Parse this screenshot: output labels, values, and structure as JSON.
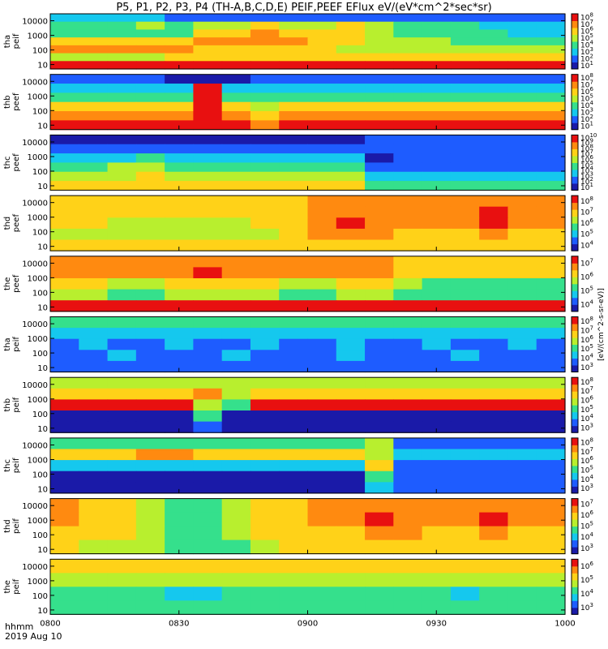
{
  "title": "P5, P1, P2, P3, P4 (TH-A,B,C,D,E) PEIF,PEEF EFlux eV/(eV*cm^2*sec*sr)",
  "time_label": "hhmm",
  "date_label": "2019 Aug 10",
  "colorbar_units": "[eV/(cm^2-s-sr-eV)]",
  "chart_data": [
    {
      "type": "heatmap",
      "ylabel": [
        "tha",
        "peif"
      ],
      "x": [
        "0800",
        "0830",
        "0900",
        "0930",
        "1000"
      ],
      "yticks": [
        "10",
        "100",
        "1000",
        "10000"
      ],
      "ylim": [
        5,
        30000
      ],
      "cbar": [
        "10^1",
        "10^2",
        "10^3",
        "10^4",
        "10^5",
        "10^6",
        "10^7",
        "10^8"
      ],
      "rows": [
        [
          2,
          2,
          2,
          2,
          1,
          1,
          1,
          1,
          1,
          1,
          1,
          1,
          1,
          1,
          1,
          1,
          1,
          1
        ],
        [
          3,
          3,
          3,
          4,
          3,
          4,
          4,
          5,
          4,
          4,
          5,
          4,
          3,
          3,
          3,
          2,
          2,
          2
        ],
        [
          3,
          3,
          3,
          3,
          3,
          5,
          5,
          6,
          5,
          5,
          5,
          4,
          3,
          3,
          3,
          3,
          2,
          2
        ],
        [
          5,
          5,
          5,
          5,
          5,
          6,
          6,
          6,
          6,
          5,
          5,
          4,
          4,
          4,
          3,
          3,
          3,
          3
        ],
        [
          6,
          6,
          6,
          6,
          6,
          5,
          5,
          5,
          5,
          5,
          4,
          4,
          4,
          4,
          4,
          4,
          4,
          4
        ],
        [
          4,
          4,
          4,
          4,
          5,
          5,
          5,
          5,
          5,
          5,
          5,
          5,
          5,
          5,
          5,
          5,
          5,
          5
        ],
        [
          7,
          7,
          7,
          7,
          7,
          7,
          7,
          7,
          7,
          7,
          7,
          7,
          7,
          7,
          7,
          7,
          7,
          7
        ]
      ]
    },
    {
      "type": "heatmap",
      "ylabel": [
        "thb",
        "peef"
      ],
      "x": [
        "0800",
        "0830",
        "0900",
        "0930",
        "1000"
      ],
      "yticks": [
        "10",
        "100",
        "1000",
        "10000"
      ],
      "ylim": [
        5,
        30000
      ],
      "cbar": [
        "10^1",
        "10^2",
        "10^3",
        "10^4",
        "10^5",
        "10^6",
        "10^7",
        "10^8"
      ],
      "rows": [
        [
          1,
          1,
          1,
          1,
          0,
          0,
          0,
          1,
          1,
          1,
          1,
          1,
          1,
          1,
          1,
          1,
          1,
          1
        ],
        [
          2,
          2,
          2,
          2,
          2,
          7,
          2,
          2,
          2,
          2,
          2,
          2,
          2,
          2,
          2,
          2,
          2,
          2
        ],
        [
          3,
          3,
          3,
          3,
          3,
          7,
          3,
          3,
          3,
          3,
          3,
          3,
          3,
          3,
          3,
          3,
          3,
          3
        ],
        [
          5,
          5,
          5,
          5,
          5,
          7,
          5,
          4,
          5,
          5,
          5,
          5,
          5,
          5,
          5,
          5,
          5,
          5
        ],
        [
          6,
          6,
          6,
          6,
          6,
          7,
          6,
          5,
          6,
          6,
          6,
          6,
          6,
          6,
          6,
          6,
          6,
          6
        ],
        [
          7,
          7,
          7,
          7,
          7,
          7,
          7,
          6,
          7,
          7,
          7,
          7,
          7,
          7,
          7,
          7,
          7,
          7
        ]
      ]
    },
    {
      "type": "heatmap",
      "ylabel": [
        "thc",
        "peef"
      ],
      "x": [
        "0800",
        "0830",
        "0900",
        "0930",
        "1000"
      ],
      "yticks": [
        "10",
        "100",
        "1000",
        "10000"
      ],
      "ylim": [
        5,
        30000
      ],
      "cbar": [
        "10^1",
        "10^2",
        "10^3",
        "10^4",
        "10^5",
        "10^6",
        "10^7",
        "10^8",
        "10^9",
        "10^10"
      ],
      "rows": [
        [
          0,
          0,
          0,
          0,
          0,
          0,
          0,
          0,
          0,
          0,
          0,
          1,
          1,
          1,
          1,
          1,
          1,
          1
        ],
        [
          1,
          1,
          1,
          1,
          1,
          1,
          1,
          1,
          1,
          1,
          1,
          1,
          1,
          1,
          1,
          1,
          1,
          1
        ],
        [
          2,
          2,
          2,
          3,
          2,
          2,
          2,
          2,
          2,
          2,
          2,
          0,
          1,
          1,
          1,
          1,
          1,
          1
        ],
        [
          3,
          3,
          4,
          4,
          3,
          3,
          3,
          3,
          3,
          3,
          3,
          1,
          1,
          1,
          1,
          1,
          1,
          1
        ],
        [
          4,
          4,
          4,
          5,
          4,
          4,
          4,
          4,
          4,
          4,
          4,
          2,
          2,
          2,
          2,
          2,
          2,
          2
        ],
        [
          5,
          5,
          5,
          5,
          5,
          5,
          5,
          5,
          5,
          5,
          5,
          3,
          3,
          3,
          3,
          3,
          3,
          3
        ]
      ]
    },
    {
      "type": "heatmap",
      "ylabel": [
        "thd",
        "peef"
      ],
      "x": [
        "0800",
        "0830",
        "0900",
        "0930",
        "1000"
      ],
      "yticks": [
        "10",
        "100",
        "1000",
        "10000"
      ],
      "ylim": [
        5,
        30000
      ],
      "cbar": [
        "10^4",
        "10^5",
        "10^6",
        "10^7",
        "10^8"
      ],
      "rows": [
        [
          5,
          5,
          5,
          5,
          5,
          5,
          5,
          5,
          5,
          6,
          6,
          6,
          6,
          6,
          6,
          6,
          6,
          6
        ],
        [
          5,
          5,
          5,
          5,
          5,
          5,
          5,
          5,
          5,
          6,
          6,
          6,
          6,
          6,
          6,
          7,
          6,
          6
        ],
        [
          5,
          5,
          4,
          4,
          4,
          4,
          4,
          5,
          5,
          6,
          7,
          6,
          6,
          6,
          6,
          7,
          6,
          6
        ],
        [
          4,
          4,
          4,
          4,
          4,
          4,
          4,
          4,
          5,
          6,
          6,
          6,
          5,
          5,
          5,
          6,
          5,
          5
        ],
        [
          5,
          5,
          5,
          5,
          5,
          5,
          5,
          5,
          5,
          5,
          5,
          5,
          5,
          5,
          5,
          5,
          5,
          5
        ]
      ]
    },
    {
      "type": "heatmap",
      "ylabel": [
        "the",
        "peef"
      ],
      "x": [
        "0800",
        "0830",
        "0900",
        "0930",
        "1000"
      ],
      "yticks": [
        "10",
        "100",
        "1000",
        "10000"
      ],
      "ylim": [
        5,
        30000
      ],
      "cbar": [
        "10^4",
        "10^5",
        "10^6",
        "10^7"
      ],
      "rows": [
        [
          6,
          6,
          6,
          6,
          6,
          6,
          6,
          6,
          6,
          6,
          6,
          6,
          5,
          5,
          5,
          5,
          5,
          5
        ],
        [
          6,
          6,
          6,
          6,
          6,
          7,
          6,
          6,
          6,
          6,
          6,
          6,
          5,
          5,
          5,
          5,
          5,
          5
        ],
        [
          5,
          5,
          4,
          4,
          5,
          5,
          5,
          5,
          4,
          4,
          5,
          5,
          4,
          3,
          3,
          3,
          3,
          3
        ],
        [
          4,
          4,
          3,
          3,
          4,
          4,
          4,
          4,
          3,
          3,
          4,
          4,
          3,
          3,
          3,
          3,
          3,
          3
        ],
        [
          7,
          7,
          7,
          7,
          7,
          7,
          7,
          7,
          7,
          7,
          7,
          7,
          7,
          7,
          7,
          7,
          7,
          7
        ]
      ]
    },
    {
      "type": "heatmap",
      "ylabel": [
        "tha",
        "peif"
      ],
      "x": [
        "0800",
        "0830",
        "0900",
        "0930",
        "1000"
      ],
      "yticks": [
        "10",
        "100",
        "1000",
        "10000"
      ],
      "ylim": [
        5,
        30000
      ],
      "cbar": [
        "10^3",
        "10^4",
        "10^5",
        "10^6",
        "10^7",
        "10^8"
      ],
      "rows": [
        [
          3,
          3,
          3,
          3,
          3,
          3,
          3,
          3,
          3,
          3,
          3,
          3,
          3,
          3,
          3,
          3,
          3,
          3
        ],
        [
          2,
          2,
          2,
          2,
          2,
          2,
          2,
          2,
          2,
          2,
          2,
          2,
          2,
          2,
          2,
          2,
          2,
          2
        ],
        [
          1,
          2,
          1,
          1,
          2,
          1,
          1,
          2,
          1,
          1,
          2,
          1,
          1,
          2,
          1,
          1,
          2,
          1
        ],
        [
          1,
          1,
          2,
          1,
          1,
          1,
          2,
          1,
          1,
          1,
          2,
          1,
          1,
          1,
          2,
          1,
          1,
          1
        ],
        [
          1,
          1,
          1,
          1,
          1,
          1,
          1,
          1,
          1,
          1,
          1,
          1,
          1,
          1,
          1,
          1,
          1,
          1
        ]
      ]
    },
    {
      "type": "heatmap",
      "ylabel": [
        "thb",
        "peif"
      ],
      "x": [
        "0800",
        "0830",
        "0900",
        "0930",
        "1000"
      ],
      "yticks": [
        "10",
        "100",
        "1000",
        "10000"
      ],
      "ylim": [
        5,
        30000
      ],
      "cbar": [
        "10^3",
        "10^4",
        "10^5",
        "10^6",
        "10^7",
        "10^8"
      ],
      "rows": [
        [
          4,
          4,
          4,
          4,
          4,
          4,
          4,
          4,
          4,
          4,
          4,
          4,
          4,
          4,
          4,
          4,
          4,
          4
        ],
        [
          5,
          5,
          5,
          5,
          5,
          6,
          4,
          5,
          5,
          5,
          5,
          5,
          5,
          5,
          5,
          5,
          5,
          5
        ],
        [
          7,
          7,
          7,
          7,
          7,
          4,
          3,
          7,
          7,
          7,
          7,
          7,
          7,
          7,
          7,
          7,
          7,
          7
        ],
        [
          0,
          0,
          0,
          0,
          0,
          3,
          0,
          0,
          0,
          0,
          0,
          0,
          0,
          0,
          0,
          0,
          0,
          0
        ],
        [
          0,
          0,
          0,
          0,
          0,
          1,
          0,
          0,
          0,
          0,
          0,
          0,
          0,
          0,
          0,
          0,
          0,
          0
        ]
      ]
    },
    {
      "type": "heatmap",
      "ylabel": [
        "thc",
        "peif"
      ],
      "x": [
        "0800",
        "0830",
        "0900",
        "0930",
        "1000"
      ],
      "yticks": [
        "10",
        "100",
        "1000",
        "10000"
      ],
      "ylim": [
        5,
        30000
      ],
      "cbar": [
        "10^3",
        "10^4",
        "10^5",
        "10^6",
        "10^7",
        "10^8"
      ],
      "rows": [
        [
          3,
          3,
          3,
          3,
          3,
          3,
          3,
          3,
          3,
          3,
          3,
          4,
          1,
          1,
          1,
          1,
          1,
          1
        ],
        [
          5,
          5,
          5,
          6,
          6,
          5,
          5,
          5,
          5,
          5,
          5,
          4,
          2,
          2,
          2,
          2,
          2,
          2
        ],
        [
          2,
          2,
          2,
          2,
          2,
          2,
          2,
          2,
          2,
          2,
          2,
          5,
          1,
          1,
          1,
          1,
          1,
          1
        ],
        [
          0,
          0,
          0,
          0,
          0,
          0,
          0,
          0,
          0,
          0,
          0,
          3,
          1,
          1,
          1,
          1,
          1,
          1
        ],
        [
          0,
          0,
          0,
          0,
          0,
          0,
          0,
          0,
          0,
          0,
          0,
          2,
          1,
          1,
          1,
          1,
          1,
          1
        ]
      ]
    },
    {
      "type": "heatmap",
      "ylabel": [
        "thd",
        "peif"
      ],
      "x": [
        "0800",
        "0830",
        "0900",
        "0930",
        "1000"
      ],
      "yticks": [
        "10",
        "100",
        "1000",
        "10000"
      ],
      "ylim": [
        5,
        30000
      ],
      "cbar": [
        "10^3",
        "10^4",
        "10^5",
        "10^6",
        "10^7"
      ],
      "rows": [
        [
          6,
          5,
          5,
          4,
          3,
          3,
          4,
          5,
          5,
          6,
          6,
          6,
          6,
          6,
          6,
          6,
          6,
          6
        ],
        [
          6,
          5,
          5,
          4,
          3,
          3,
          4,
          5,
          5,
          6,
          6,
          7,
          6,
          6,
          6,
          7,
          6,
          6
        ],
        [
          5,
          5,
          5,
          4,
          3,
          3,
          4,
          5,
          5,
          5,
          5,
          6,
          6,
          5,
          5,
          6,
          5,
          5
        ],
        [
          5,
          4,
          4,
          4,
          3,
          3,
          3,
          4,
          5,
          5,
          5,
          5,
          5,
          5,
          5,
          5,
          5,
          5
        ]
      ]
    },
    {
      "type": "heatmap",
      "ylabel": [
        "the",
        "peif"
      ],
      "x": [
        "0800",
        "0830",
        "0900",
        "0930",
        "1000"
      ],
      "yticks": [
        "10",
        "100",
        "1000",
        "10000"
      ],
      "ylim": [
        5,
        30000
      ],
      "cbar": [
        "10^3",
        "10^4",
        "10^5",
        "10^6"
      ],
      "rows": [
        [
          5,
          5,
          5,
          5,
          5,
          5,
          5,
          5,
          5,
          5,
          5,
          5,
          5,
          5,
          5,
          5,
          5,
          5
        ],
        [
          4,
          4,
          4,
          4,
          4,
          4,
          4,
          4,
          4,
          4,
          4,
          4,
          4,
          4,
          4,
          4,
          4,
          4
        ],
        [
          3,
          3,
          3,
          3,
          2,
          2,
          3,
          3,
          3,
          3,
          3,
          3,
          3,
          3,
          2,
          3,
          3,
          3
        ],
        [
          3,
          3,
          3,
          3,
          3,
          3,
          3,
          3,
          3,
          3,
          3,
          3,
          3,
          3,
          3,
          3,
          3,
          3
        ]
      ]
    }
  ]
}
